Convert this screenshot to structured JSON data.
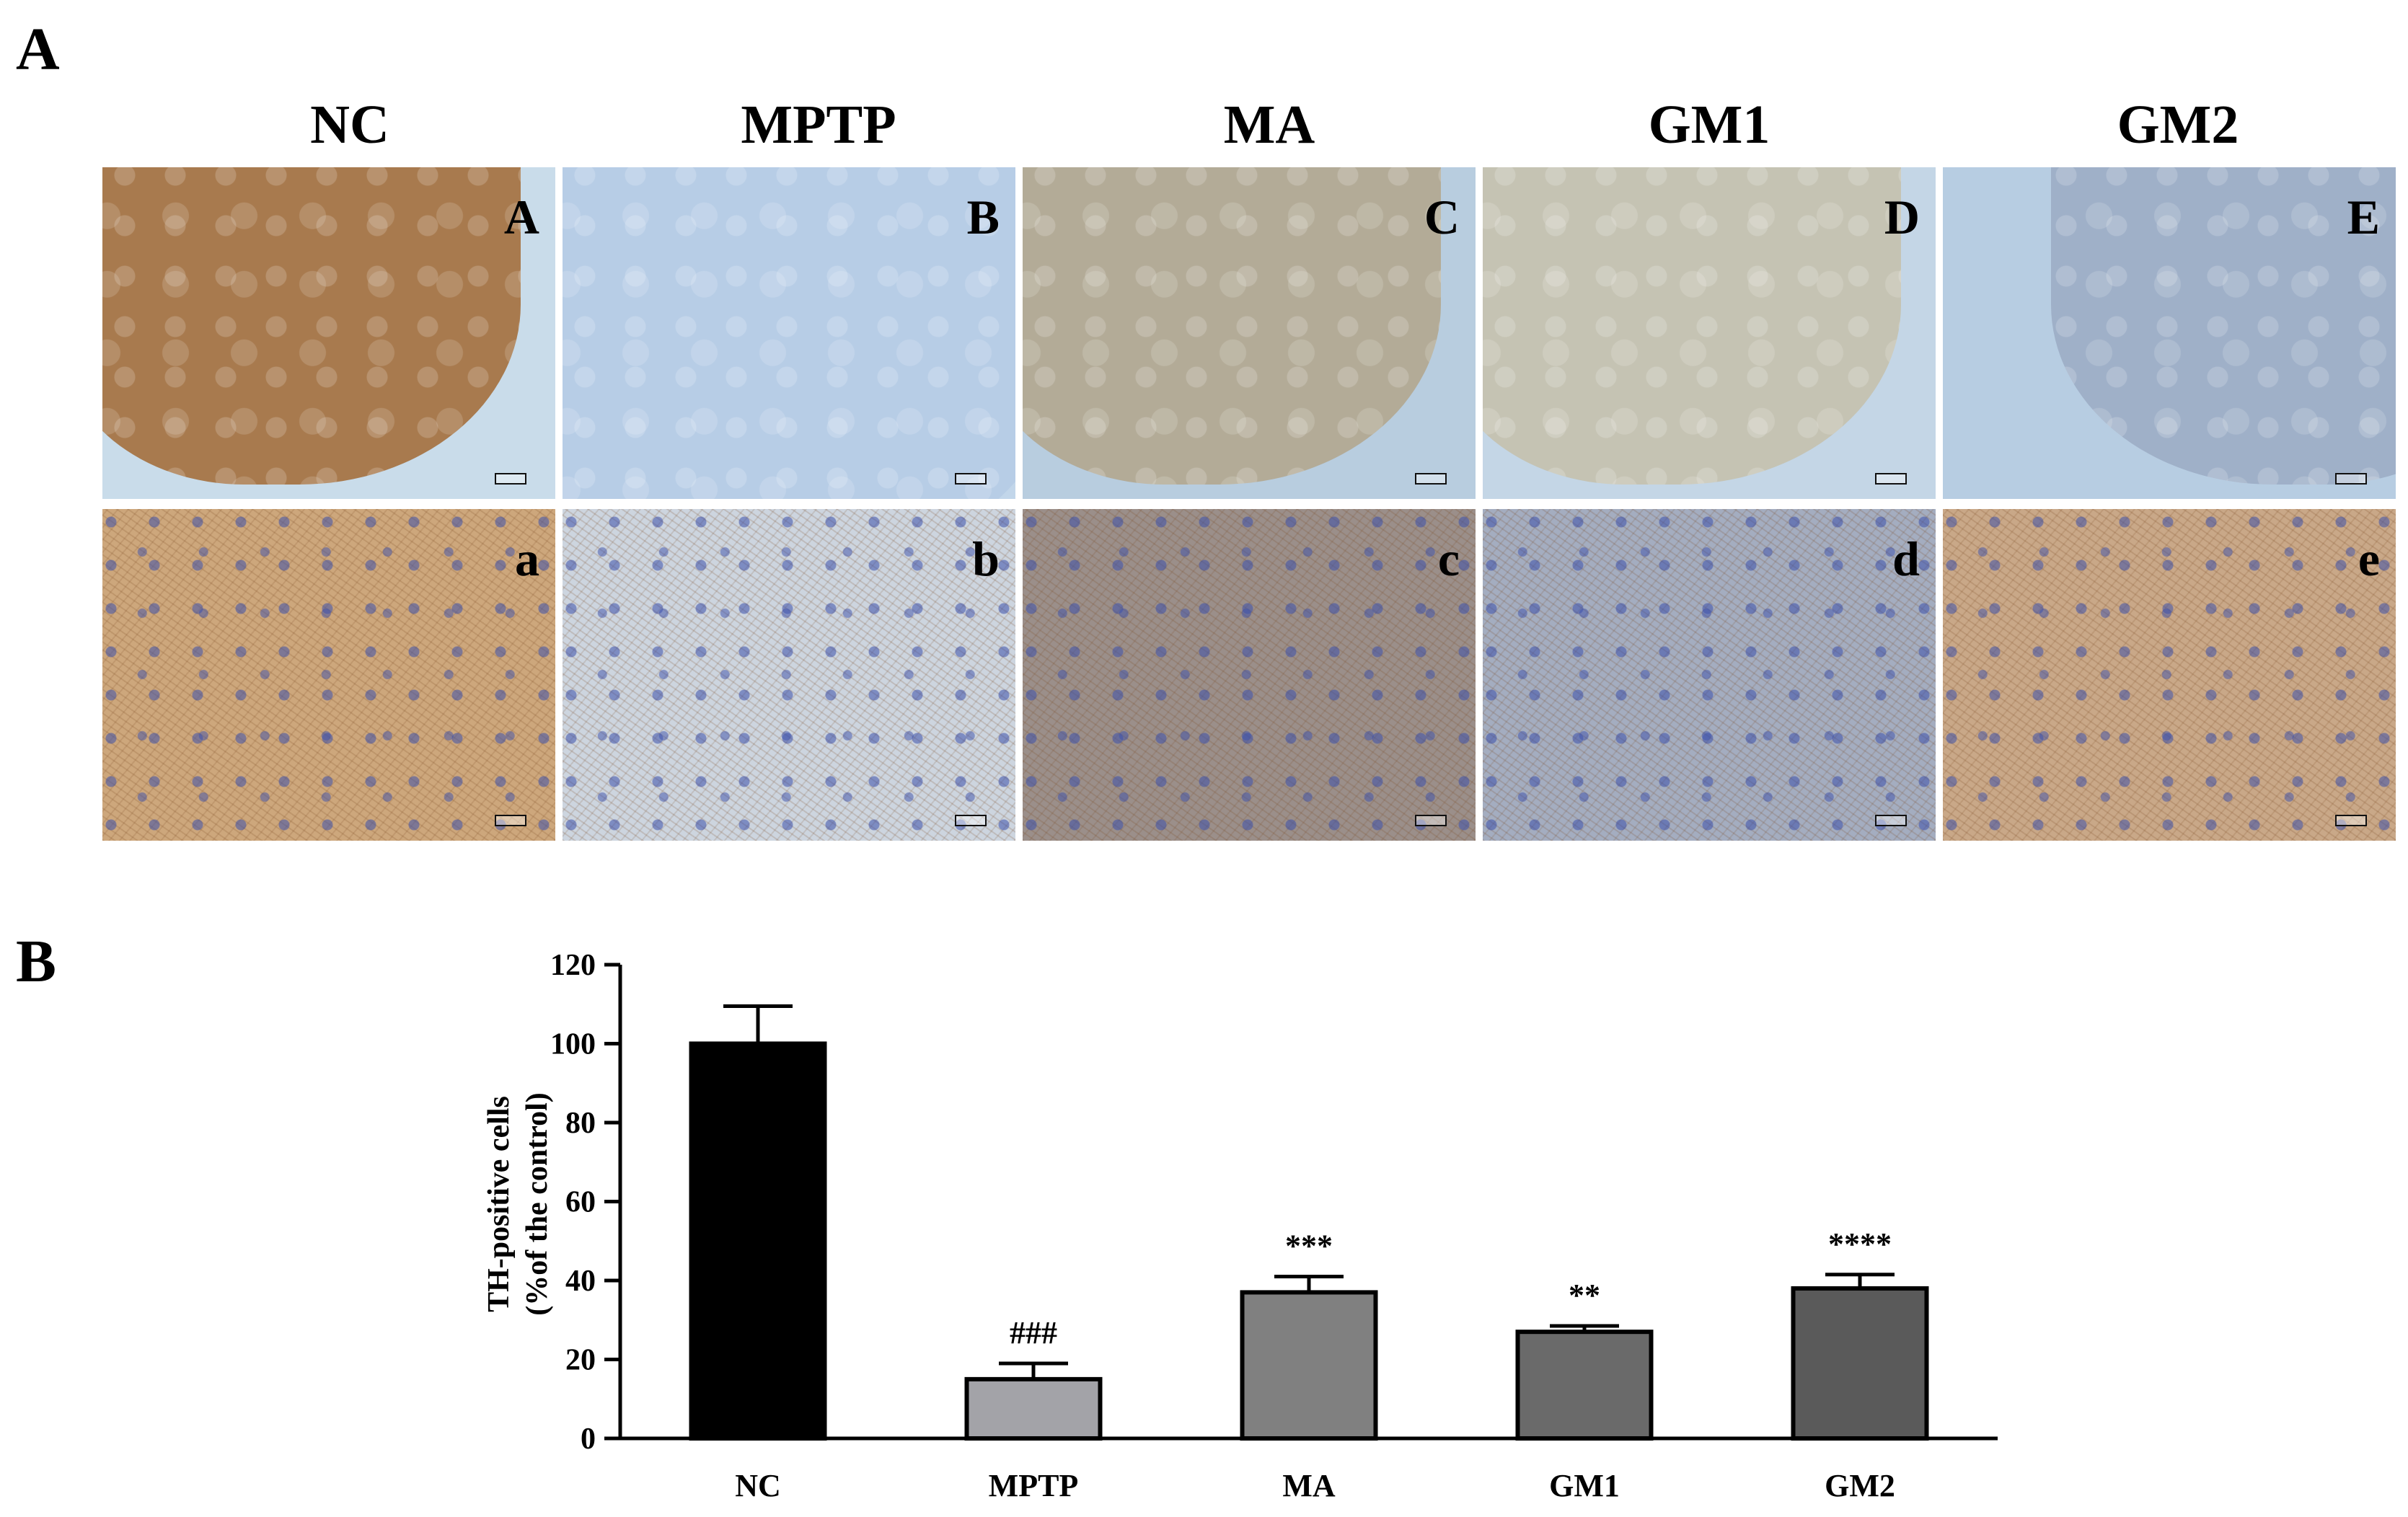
{
  "panels": {
    "a_label": "A",
    "b_label": "B"
  },
  "groups": [
    "NC",
    "MPTP",
    "MA",
    "GM1",
    "GM2"
  ],
  "micrographs": {
    "top_labels": [
      "A",
      "B",
      "C",
      "D",
      "E"
    ],
    "bottom_labels": [
      "a",
      "b",
      "c",
      "d",
      "e"
    ],
    "top_colors": [
      "#a87a4e",
      "#b7cde6",
      "#b3ab97",
      "#c5c3b3",
      "#9fb0c8"
    ],
    "top_bg_colors": [
      "#c9dcea",
      "#c2d6ea",
      "#b8cddf",
      "#c4d6e6",
      "#b7cde2"
    ],
    "bottom_colors": [
      "#cda77c",
      "#cdd5df",
      "#9b8f8a",
      "#a4adc0",
      "#c9a888"
    ]
  },
  "chart_data": {
    "type": "bar",
    "categories": [
      "NC",
      "MPTP",
      "MA",
      "GM1",
      "GM2"
    ],
    "values": [
      100,
      15,
      37,
      27,
      38
    ],
    "errors": [
      9.5,
      4,
      4,
      1.5,
      3.5
    ],
    "bar_colors": [
      "#000000",
      "#a3a3a8",
      "#808080",
      "#6a6a6a",
      "#5a5a5a"
    ],
    "annotations": [
      "",
      "###",
      "***",
      "**",
      "****"
    ],
    "ylabel_line1": "TH-positive cells",
    "ylabel_line2": "(%of the control)",
    "ylim": [
      0,
      120
    ],
    "yticks": [
      0,
      20,
      40,
      60,
      80,
      100,
      120
    ]
  }
}
